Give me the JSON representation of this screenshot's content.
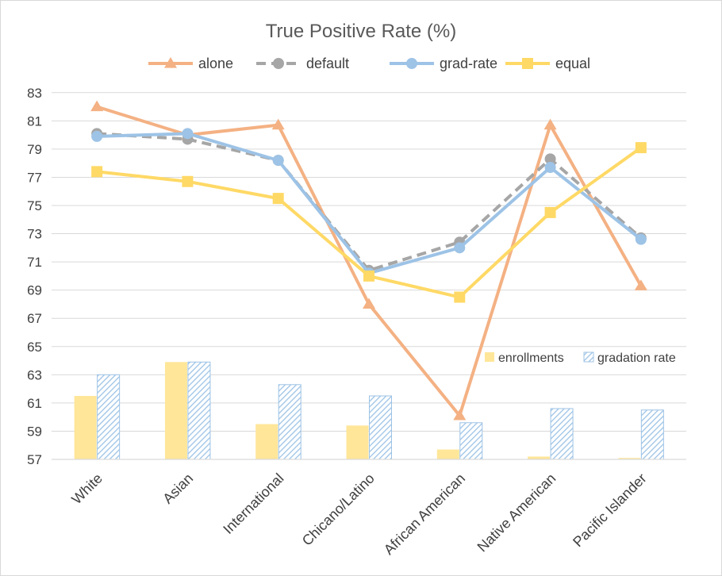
{
  "chart_data": {
    "type": "line",
    "title": "True Positive Rate (%)",
    "categories": [
      "White",
      "Asian",
      "International",
      "Chicano/Latino",
      "African American",
      "Native American",
      "Pacific Islander"
    ],
    "ylim": [
      57,
      84
    ],
    "yticks": [
      57,
      59,
      61,
      63,
      65,
      67,
      69,
      71,
      73,
      75,
      77,
      79,
      81,
      83
    ],
    "grid": true,
    "line_series": [
      {
        "name": "alone",
        "color": "#f4b183",
        "marker": "triangle",
        "dash": false,
        "values": [
          82.0,
          80.0,
          80.7,
          68.0,
          60.1,
          80.7,
          69.3
        ]
      },
      {
        "name": "default",
        "color": "#a6a6a6",
        "marker": "circle",
        "dash": true,
        "values": [
          80.1,
          79.7,
          78.2,
          70.4,
          72.4,
          78.3,
          72.7
        ]
      },
      {
        "name": "grad-rate",
        "color": "#9dc3e6",
        "marker": "circle",
        "dash": false,
        "values": [
          79.9,
          80.1,
          78.2,
          70.2,
          72.0,
          77.7,
          72.6
        ]
      },
      {
        "name": "equal",
        "color": "#ffd966",
        "marker": "square",
        "dash": false,
        "values": [
          77.4,
          76.7,
          75.5,
          70.0,
          68.5,
          74.5,
          79.1
        ]
      }
    ],
    "bar_series": [
      {
        "name": "enrollments",
        "color": "#ffe699",
        "pattern": "solid",
        "values": [
          61.5,
          63.9,
          59.5,
          59.4,
          57.7,
          57.2,
          57.1
        ]
      },
      {
        "name": "gradation rate",
        "color": "#9dc3e6",
        "pattern": "hatch",
        "values": [
          63.0,
          63.9,
          62.3,
          61.5,
          59.6,
          60.6,
          60.5
        ]
      }
    ],
    "legend_position": "top"
  }
}
